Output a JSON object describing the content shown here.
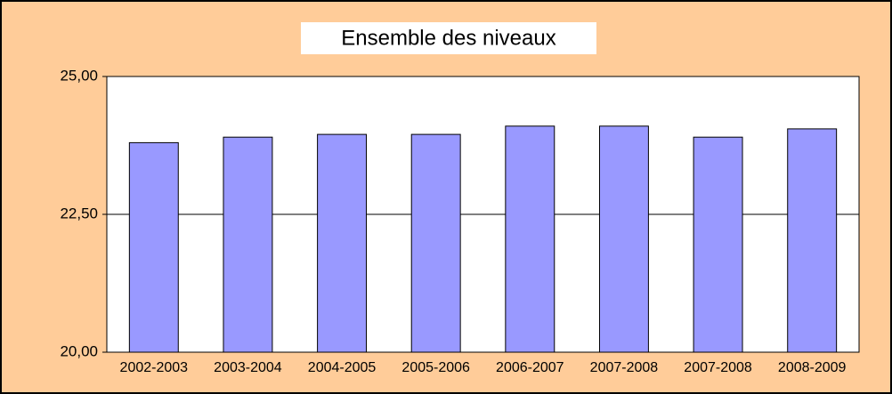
{
  "chart_data": {
    "type": "bar",
    "title": "Ensemble des niveaux",
    "categories": [
      "2002-2003",
      "2003-2004",
      "2004-2005",
      "2005-2006",
      "2006-2007",
      "2007-2008",
      "2007-2008",
      "2008-2009"
    ],
    "values": [
      23.8,
      23.9,
      23.95,
      23.95,
      24.1,
      24.1,
      23.9,
      24.05
    ],
    "color": "#9999ff",
    "ylim": [
      20,
      25
    ],
    "yticks": [
      {
        "value": 20,
        "label": "20,00"
      },
      {
        "value": 22.5,
        "label": "22,50"
      },
      {
        "value": 25,
        "label": "25,00"
      }
    ],
    "grid": true
  }
}
